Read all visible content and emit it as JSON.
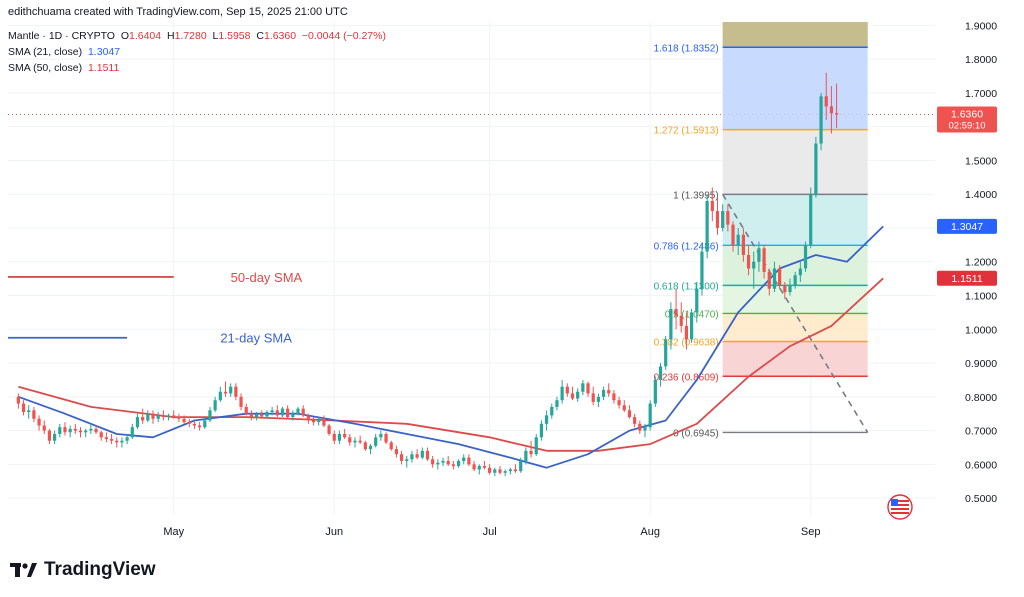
{
  "header": {
    "credit": "edithchuama created with TradingView.com, Sep 15, 2025 21:00 UTC",
    "symbol": "Mantle · 1D · CRYPTO",
    "ohlc": {
      "o_label": "O",
      "o": "1.6404",
      "h_label": "H",
      "h": "1.7280",
      "l_label": "L",
      "l": "1.5958",
      "c_label": "C",
      "c": "1.6360",
      "change": "−0.0044 (−0.27%)"
    },
    "sma21": {
      "label": "SMA (21, close)",
      "value": "1.3047"
    },
    "sma50": {
      "label": "SMA (50, close)",
      "value": "1.1511"
    }
  },
  "brand": {
    "name": "TradingView"
  },
  "colors": {
    "up": "#26a69a",
    "down": "#ef5350",
    "sma21": "#3a63c8",
    "sma50": "#db4b4b",
    "price_badge": "#ef5350",
    "sma21_badge": "#2962ff",
    "sma50_badge": "#e0323b"
  },
  "chart_data": {
    "type": "candlestick",
    "y_axis": {
      "ticks": [
        0.5,
        0.6,
        0.7,
        0.8,
        0.9,
        1.0,
        1.1,
        1.2,
        1.3,
        1.4,
        1.5,
        1.6,
        1.7,
        1.8,
        1.9
      ],
      "tick_labels": [
        "0.5000",
        "0.6000",
        "0.7000",
        "0.8000",
        "0.9000",
        "1.0000",
        "1.1000",
        "1.2000",
        "1.3000",
        "1.4000",
        "1.5000",
        "1.6000",
        "1.7000",
        "1.8000",
        "1.9000"
      ],
      "ylim": [
        0.45,
        1.91
      ]
    },
    "x_axis": {
      "start": "2025-03-30",
      "end": "2025-09-25",
      "tick_labels": [
        {
          "date": "2025-05-01",
          "label": "May"
        },
        {
          "date": "2025-06-01",
          "label": "Jun"
        },
        {
          "date": "2025-07-01",
          "label": "Jul"
        },
        {
          "date": "2025-08-01",
          "label": "Aug"
        },
        {
          "date": "2025-09-01",
          "label": "Sep"
        }
      ]
    },
    "candles_start": "2025-04-01",
    "candles": [
      [
        0.8,
        0.81,
        0.765,
        0.78
      ],
      [
        0.78,
        0.79,
        0.745,
        0.755
      ],
      [
        0.755,
        0.775,
        0.735,
        0.76
      ],
      [
        0.76,
        0.77,
        0.725,
        0.735
      ],
      [
        0.735,
        0.745,
        0.7,
        0.715
      ],
      [
        0.715,
        0.73,
        0.69,
        0.7
      ],
      [
        0.7,
        0.705,
        0.66,
        0.67
      ],
      [
        0.67,
        0.7,
        0.66,
        0.69
      ],
      [
        0.69,
        0.72,
        0.68,
        0.71
      ],
      [
        0.71,
        0.725,
        0.685,
        0.695
      ],
      [
        0.695,
        0.715,
        0.68,
        0.705
      ],
      [
        0.705,
        0.72,
        0.69,
        0.7
      ],
      [
        0.7,
        0.71,
        0.68,
        0.695
      ],
      [
        0.695,
        0.705,
        0.68,
        0.7
      ],
      [
        0.7,
        0.72,
        0.69,
        0.705
      ],
      [
        0.705,
        0.715,
        0.69,
        0.695
      ],
      [
        0.695,
        0.7,
        0.67,
        0.68
      ],
      [
        0.68,
        0.695,
        0.665,
        0.675
      ],
      [
        0.675,
        0.69,
        0.66,
        0.67
      ],
      [
        0.67,
        0.68,
        0.65,
        0.665
      ],
      [
        0.665,
        0.68,
        0.65,
        0.67
      ],
      [
        0.67,
        0.69,
        0.66,
        0.68
      ],
      [
        0.68,
        0.72,
        0.675,
        0.71
      ],
      [
        0.71,
        0.75,
        0.705,
        0.74
      ],
      [
        0.74,
        0.765,
        0.72,
        0.73
      ],
      [
        0.73,
        0.76,
        0.725,
        0.75
      ],
      [
        0.75,
        0.76,
        0.72,
        0.735
      ],
      [
        0.735,
        0.755,
        0.725,
        0.745
      ],
      [
        0.745,
        0.76,
        0.73,
        0.74
      ],
      [
        0.74,
        0.75,
        0.73,
        0.745
      ],
      [
        0.745,
        0.76,
        0.735,
        0.74
      ],
      [
        0.74,
        0.75,
        0.725,
        0.735
      ],
      [
        0.735,
        0.745,
        0.72,
        0.725
      ],
      [
        0.725,
        0.735,
        0.71,
        0.72
      ],
      [
        0.72,
        0.73,
        0.705,
        0.715
      ],
      [
        0.715,
        0.725,
        0.7,
        0.71
      ],
      [
        0.71,
        0.74,
        0.705,
        0.73
      ],
      [
        0.73,
        0.77,
        0.725,
        0.76
      ],
      [
        0.76,
        0.8,
        0.755,
        0.79
      ],
      [
        0.79,
        0.83,
        0.785,
        0.815
      ],
      [
        0.815,
        0.845,
        0.8,
        0.81
      ],
      [
        0.81,
        0.84,
        0.8,
        0.83
      ],
      [
        0.83,
        0.84,
        0.79,
        0.8
      ],
      [
        0.8,
        0.81,
        0.76,
        0.77
      ],
      [
        0.77,
        0.78,
        0.745,
        0.75
      ],
      [
        0.75,
        0.76,
        0.73,
        0.74
      ],
      [
        0.74,
        0.755,
        0.73,
        0.748
      ],
      [
        0.748,
        0.76,
        0.735,
        0.742
      ],
      [
        0.742,
        0.76,
        0.735,
        0.755
      ],
      [
        0.755,
        0.77,
        0.745,
        0.76
      ],
      [
        0.76,
        0.775,
        0.74,
        0.745
      ],
      [
        0.745,
        0.77,
        0.74,
        0.765
      ],
      [
        0.765,
        0.775,
        0.735,
        0.74
      ],
      [
        0.74,
        0.76,
        0.73,
        0.75
      ],
      [
        0.75,
        0.77,
        0.745,
        0.765
      ],
      [
        0.765,
        0.775,
        0.74,
        0.745
      ],
      [
        0.745,
        0.75,
        0.72,
        0.73
      ],
      [
        0.73,
        0.74,
        0.715,
        0.725
      ],
      [
        0.725,
        0.74,
        0.715,
        0.735
      ],
      [
        0.735,
        0.745,
        0.71,
        0.715
      ],
      [
        0.715,
        0.72,
        0.685,
        0.69
      ],
      [
        0.69,
        0.7,
        0.66,
        0.67
      ],
      [
        0.67,
        0.7,
        0.66,
        0.69
      ],
      [
        0.69,
        0.705,
        0.675,
        0.68
      ],
      [
        0.68,
        0.69,
        0.655,
        0.665
      ],
      [
        0.665,
        0.68,
        0.65,
        0.67
      ],
      [
        0.67,
        0.685,
        0.66,
        0.665
      ],
      [
        0.665,
        0.67,
        0.64,
        0.645
      ],
      [
        0.645,
        0.66,
        0.63,
        0.655
      ],
      [
        0.655,
        0.69,
        0.65,
        0.68
      ],
      [
        0.68,
        0.7,
        0.67,
        0.69
      ],
      [
        0.69,
        0.695,
        0.66,
        0.665
      ],
      [
        0.665,
        0.67,
        0.64,
        0.645
      ],
      [
        0.645,
        0.655,
        0.62,
        0.63
      ],
      [
        0.63,
        0.64,
        0.6,
        0.61
      ],
      [
        0.61,
        0.625,
        0.59,
        0.615
      ],
      [
        0.615,
        0.64,
        0.605,
        0.63
      ],
      [
        0.63,
        0.645,
        0.615,
        0.62
      ],
      [
        0.62,
        0.65,
        0.615,
        0.64
      ],
      [
        0.64,
        0.65,
        0.61,
        0.615
      ],
      [
        0.615,
        0.625,
        0.59,
        0.6
      ],
      [
        0.6,
        0.615,
        0.585,
        0.605
      ],
      [
        0.605,
        0.62,
        0.595,
        0.61
      ],
      [
        0.61,
        0.625,
        0.595,
        0.6
      ],
      [
        0.6,
        0.61,
        0.585,
        0.595
      ],
      [
        0.595,
        0.615,
        0.59,
        0.61
      ],
      [
        0.61,
        0.63,
        0.6,
        0.62
      ],
      [
        0.62,
        0.63,
        0.595,
        0.6
      ],
      [
        0.6,
        0.61,
        0.58,
        0.585
      ],
      [
        0.585,
        0.6,
        0.57,
        0.595
      ],
      [
        0.595,
        0.61,
        0.585,
        0.59
      ],
      [
        0.59,
        0.6,
        0.57,
        0.575
      ],
      [
        0.575,
        0.59,
        0.565,
        0.585
      ],
      [
        0.585,
        0.595,
        0.57,
        0.575
      ],
      [
        0.575,
        0.585,
        0.565,
        0.58
      ],
      [
        0.58,
        0.59,
        0.57,
        0.585
      ],
      [
        0.585,
        0.6,
        0.575,
        0.58
      ],
      [
        0.58,
        0.62,
        0.575,
        0.61
      ],
      [
        0.61,
        0.65,
        0.6,
        0.64
      ],
      [
        0.64,
        0.67,
        0.62,
        0.63
      ],
      [
        0.63,
        0.69,
        0.625,
        0.68
      ],
      [
        0.68,
        0.73,
        0.67,
        0.72
      ],
      [
        0.72,
        0.76,
        0.7,
        0.745
      ],
      [
        0.745,
        0.78,
        0.735,
        0.77
      ],
      [
        0.77,
        0.8,
        0.76,
        0.79
      ],
      [
        0.79,
        0.85,
        0.78,
        0.83
      ],
      [
        0.83,
        0.84,
        0.8,
        0.81
      ],
      [
        0.81,
        0.83,
        0.79,
        0.795
      ],
      [
        0.795,
        0.825,
        0.785,
        0.815
      ],
      [
        0.815,
        0.85,
        0.805,
        0.84
      ],
      [
        0.84,
        0.845,
        0.8,
        0.81
      ],
      [
        0.81,
        0.83,
        0.775,
        0.785
      ],
      [
        0.785,
        0.81,
        0.77,
        0.8
      ],
      [
        0.8,
        0.83,
        0.79,
        0.82
      ],
      [
        0.82,
        0.84,
        0.8,
        0.81
      ],
      [
        0.81,
        0.82,
        0.78,
        0.79
      ],
      [
        0.79,
        0.8,
        0.765,
        0.775
      ],
      [
        0.775,
        0.79,
        0.755,
        0.76
      ],
      [
        0.76,
        0.775,
        0.735,
        0.74
      ],
      [
        0.74,
        0.75,
        0.71,
        0.72
      ],
      [
        0.72,
        0.73,
        0.69,
        0.7
      ],
      [
        0.7,
        0.72,
        0.68,
        0.71
      ],
      [
        0.71,
        0.79,
        0.7,
        0.78
      ],
      [
        0.78,
        0.86,
        0.77,
        0.85
      ],
      [
        0.85,
        0.9,
        0.83,
        0.89
      ],
      [
        0.89,
        0.98,
        0.88,
        0.97
      ],
      [
        0.97,
        1.08,
        0.94,
        1.06
      ],
      [
        1.06,
        1.12,
        1.0,
        1.04
      ],
      [
        1.04,
        1.08,
        0.99,
        1.01
      ],
      [
        1.01,
        1.05,
        0.94,
        0.97
      ],
      [
        0.97,
        1.06,
        0.96,
        1.05
      ],
      [
        1.05,
        1.14,
        1.02,
        1.12
      ],
      [
        1.12,
        1.25,
        1.1,
        1.23
      ],
      [
        1.23,
        1.4,
        1.21,
        1.38
      ],
      [
        1.38,
        1.42,
        1.32,
        1.35
      ],
      [
        1.35,
        1.39,
        1.28,
        1.3
      ],
      [
        1.3,
        1.37,
        1.29,
        1.35
      ],
      [
        1.35,
        1.37,
        1.29,
        1.31
      ],
      [
        1.31,
        1.32,
        1.23,
        1.25
      ],
      [
        1.25,
        1.3,
        1.22,
        1.28
      ],
      [
        1.28,
        1.3,
        1.2,
        1.22
      ],
      [
        1.22,
        1.25,
        1.16,
        1.18
      ],
      [
        1.18,
        1.23,
        1.12,
        1.2
      ],
      [
        1.2,
        1.26,
        1.17,
        1.24
      ],
      [
        1.24,
        1.25,
        1.15,
        1.17
      ],
      [
        1.17,
        1.18,
        1.1,
        1.12
      ],
      [
        1.12,
        1.2,
        1.11,
        1.18
      ],
      [
        1.18,
        1.19,
        1.12,
        1.13
      ],
      [
        1.13,
        1.14,
        1.09,
        1.11
      ],
      [
        1.11,
        1.15,
        1.1,
        1.13
      ],
      [
        1.13,
        1.17,
        1.12,
        1.16
      ],
      [
        1.16,
        1.2,
        1.14,
        1.18
      ],
      [
        1.18,
        1.26,
        1.17,
        1.25
      ],
      [
        1.25,
        1.42,
        1.24,
        1.4
      ],
      [
        1.4,
        1.57,
        1.39,
        1.55
      ],
      [
        1.55,
        1.7,
        1.53,
        1.69
      ],
      [
        1.69,
        1.76,
        1.62,
        1.66
      ],
      [
        1.66,
        1.72,
        1.58,
        1.64
      ],
      [
        1.64,
        1.728,
        1.596,
        1.636
      ]
    ],
    "sma21": {
      "name": "SMA (21, close)",
      "last": 1.3047,
      "points": [
        [
          "2025-04-01",
          0.8
        ],
        [
          "2025-04-10",
          0.75
        ],
        [
          "2025-04-20",
          0.69
        ],
        [
          "2025-04-27",
          0.68
        ],
        [
          "2025-05-05",
          0.73
        ],
        [
          "2025-05-15",
          0.75
        ],
        [
          "2025-05-25",
          0.75
        ],
        [
          "2025-06-05",
          0.72
        ],
        [
          "2025-06-15",
          0.69
        ],
        [
          "2025-06-25",
          0.66
        ],
        [
          "2025-07-05",
          0.62
        ],
        [
          "2025-07-12",
          0.59
        ],
        [
          "2025-07-20",
          0.63
        ],
        [
          "2025-07-28",
          0.7
        ],
        [
          "2025-08-04",
          0.73
        ],
        [
          "2025-08-10",
          0.85
        ],
        [
          "2025-08-18",
          1.05
        ],
        [
          "2025-08-26",
          1.18
        ],
        [
          "2025-09-02",
          1.22
        ],
        [
          "2025-09-08",
          1.2
        ],
        [
          "2025-09-15",
          1.3047
        ]
      ]
    },
    "sma50": {
      "name": "SMA (50, close)",
      "last": 1.1511,
      "points": [
        [
          "2025-04-01",
          0.83
        ],
        [
          "2025-04-15",
          0.77
        ],
        [
          "2025-05-01",
          0.74
        ],
        [
          "2025-05-15",
          0.74
        ],
        [
          "2025-06-01",
          0.73
        ],
        [
          "2025-06-15",
          0.72
        ],
        [
          "2025-07-01",
          0.68
        ],
        [
          "2025-07-12",
          0.64
        ],
        [
          "2025-07-22",
          0.64
        ],
        [
          "2025-08-01",
          0.66
        ],
        [
          "2025-08-10",
          0.72
        ],
        [
          "2025-08-20",
          0.86
        ],
        [
          "2025-08-28",
          0.95
        ],
        [
          "2025-09-05",
          1.01
        ],
        [
          "2025-09-15",
          1.1511
        ]
      ]
    },
    "last_price": {
      "value": 1.636,
      "label": "1.6360",
      "countdown": "02:59:10"
    },
    "sma21_badge": "1.3047",
    "sma50_badge": "1.1511",
    "fibonacci": {
      "start_date": "2025-08-15",
      "end_date": "2025-09-12",
      "top_price": 1.91,
      "levels": [
        {
          "ratio": 1.618,
          "label": "1.618 (1.8352)",
          "price": 1.8352,
          "fill": "#a5d6a7",
          "line": "#2962ff",
          "text_color": "#2962ff"
        },
        {
          "ratio": 1.272,
          "label": "1.272 (1.5913)",
          "price": 1.5913,
          "fill": "#bfd4ff",
          "line": "#f5a623",
          "text_color": "#f5a623"
        },
        {
          "ratio": 1.0,
          "label": "1 (1.3995)",
          "price": 1.3995,
          "fill": "#e6e6e6",
          "line": "#787b86",
          "text_color": "#555555"
        },
        {
          "ratio": 0.786,
          "label": "0.786 (1.2486)",
          "price": 1.2486,
          "fill": "#c7ecec",
          "line": "#00bcd4",
          "text_color": "#2962ff"
        },
        {
          "ratio": 0.618,
          "label": "0.618 (1.1300)",
          "price": 1.13,
          "fill": "#d7f0d7",
          "line": "#26a69a",
          "text_color": "#26a69a"
        },
        {
          "ratio": 0.5,
          "label": "0.5 (1.0470)",
          "price": 1.047,
          "fill": "#dff5dc",
          "line": "#4caf50",
          "text_color": "#4caf50"
        },
        {
          "ratio": 0.382,
          "label": "0.382 (0.9638)",
          "price": 0.9638,
          "fill": "#ffe8c4",
          "line": "#f5a623",
          "text_color": "#f5a623"
        },
        {
          "ratio": 0.236,
          "label": "0.236 (0.8609)",
          "price": 0.8609,
          "fill": "#f8cccc",
          "line": "#e53935",
          "text_color": "#e53935"
        },
        {
          "ratio": 0.0,
          "label": "0 (0.6945)",
          "price": 0.6945,
          "fill": null,
          "line": "#787b86",
          "text_color": "#555555"
        }
      ],
      "trend_line": {
        "from": [
          "2025-08-15",
          1.3995
        ],
        "to": [
          "2025-09-12",
          0.6945
        ]
      }
    },
    "annotations": [
      {
        "text": "50-day SMA",
        "color": "#db4b4b",
        "line_from": [
          "2025-03-30",
          1.155
        ],
        "line_to": [
          "2025-05-01",
          1.155
        ],
        "text_at": [
          "2025-05-12",
          1.155
        ]
      },
      {
        "text": "21-day SMA",
        "color": "#3a63c8",
        "line_from": [
          "2025-03-30",
          0.975
        ],
        "line_to": [
          "2025-04-22",
          0.975
        ],
        "text_at": [
          "2025-05-10",
          0.975
        ]
      }
    ]
  }
}
